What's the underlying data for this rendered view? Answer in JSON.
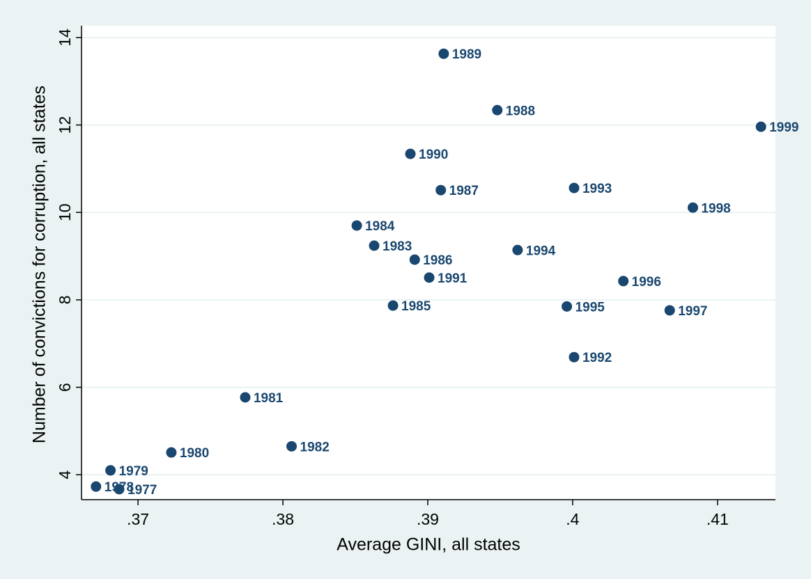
{
  "chart_data": {
    "type": "scatter",
    "xlabel": "Average GINI, all states",
    "ylabel": "Number of convictions for corruption, all states",
    "x": [
      0.3911,
      0.3948,
      0.413,
      0.3888,
      0.3909,
      0.4001,
      0.4083,
      0.3851,
      0.3863,
      0.3962,
      0.3891,
      0.3901,
      0.4035,
      0.3876,
      0.3996,
      0.4067,
      0.4001,
      0.3774,
      0.3806,
      0.3723,
      0.3681,
      0.3671,
      0.3687
    ],
    "values": [
      13.63,
      12.34,
      11.96,
      11.34,
      10.51,
      10.56,
      10.11,
      9.7,
      9.24,
      9.14,
      8.92,
      8.51,
      8.43,
      7.87,
      7.85,
      7.76,
      6.69,
      5.77,
      4.65,
      4.51,
      4.1,
      3.73,
      3.67
    ],
    "point_labels": [
      "1989",
      "1988",
      "1999",
      "1990",
      "1987",
      "1993",
      "1998",
      "1984",
      "1983",
      "1994",
      "1986",
      "1991",
      "1996",
      "1985",
      "1995",
      "1997",
      "1992",
      "1981",
      "1982",
      "1980",
      "1979",
      "1978",
      "1977"
    ],
    "color": "#1a476f",
    "label_color": "#1a476f",
    "xlim": [
      0.3661,
      0.414
    ],
    "ylim": [
      3.43,
      14.27
    ],
    "xticks": [
      {
        "value": 0.37,
        "label": ".37"
      },
      {
        "value": 0.38,
        "label": ".38"
      },
      {
        "value": 0.39,
        "label": ".39"
      },
      {
        "value": 0.4,
        "label": ".4"
      },
      {
        "value": 0.41,
        "label": ".41"
      }
    ],
    "yticks": [
      4,
      6,
      8,
      10,
      12,
      14
    ],
    "grid": true
  }
}
